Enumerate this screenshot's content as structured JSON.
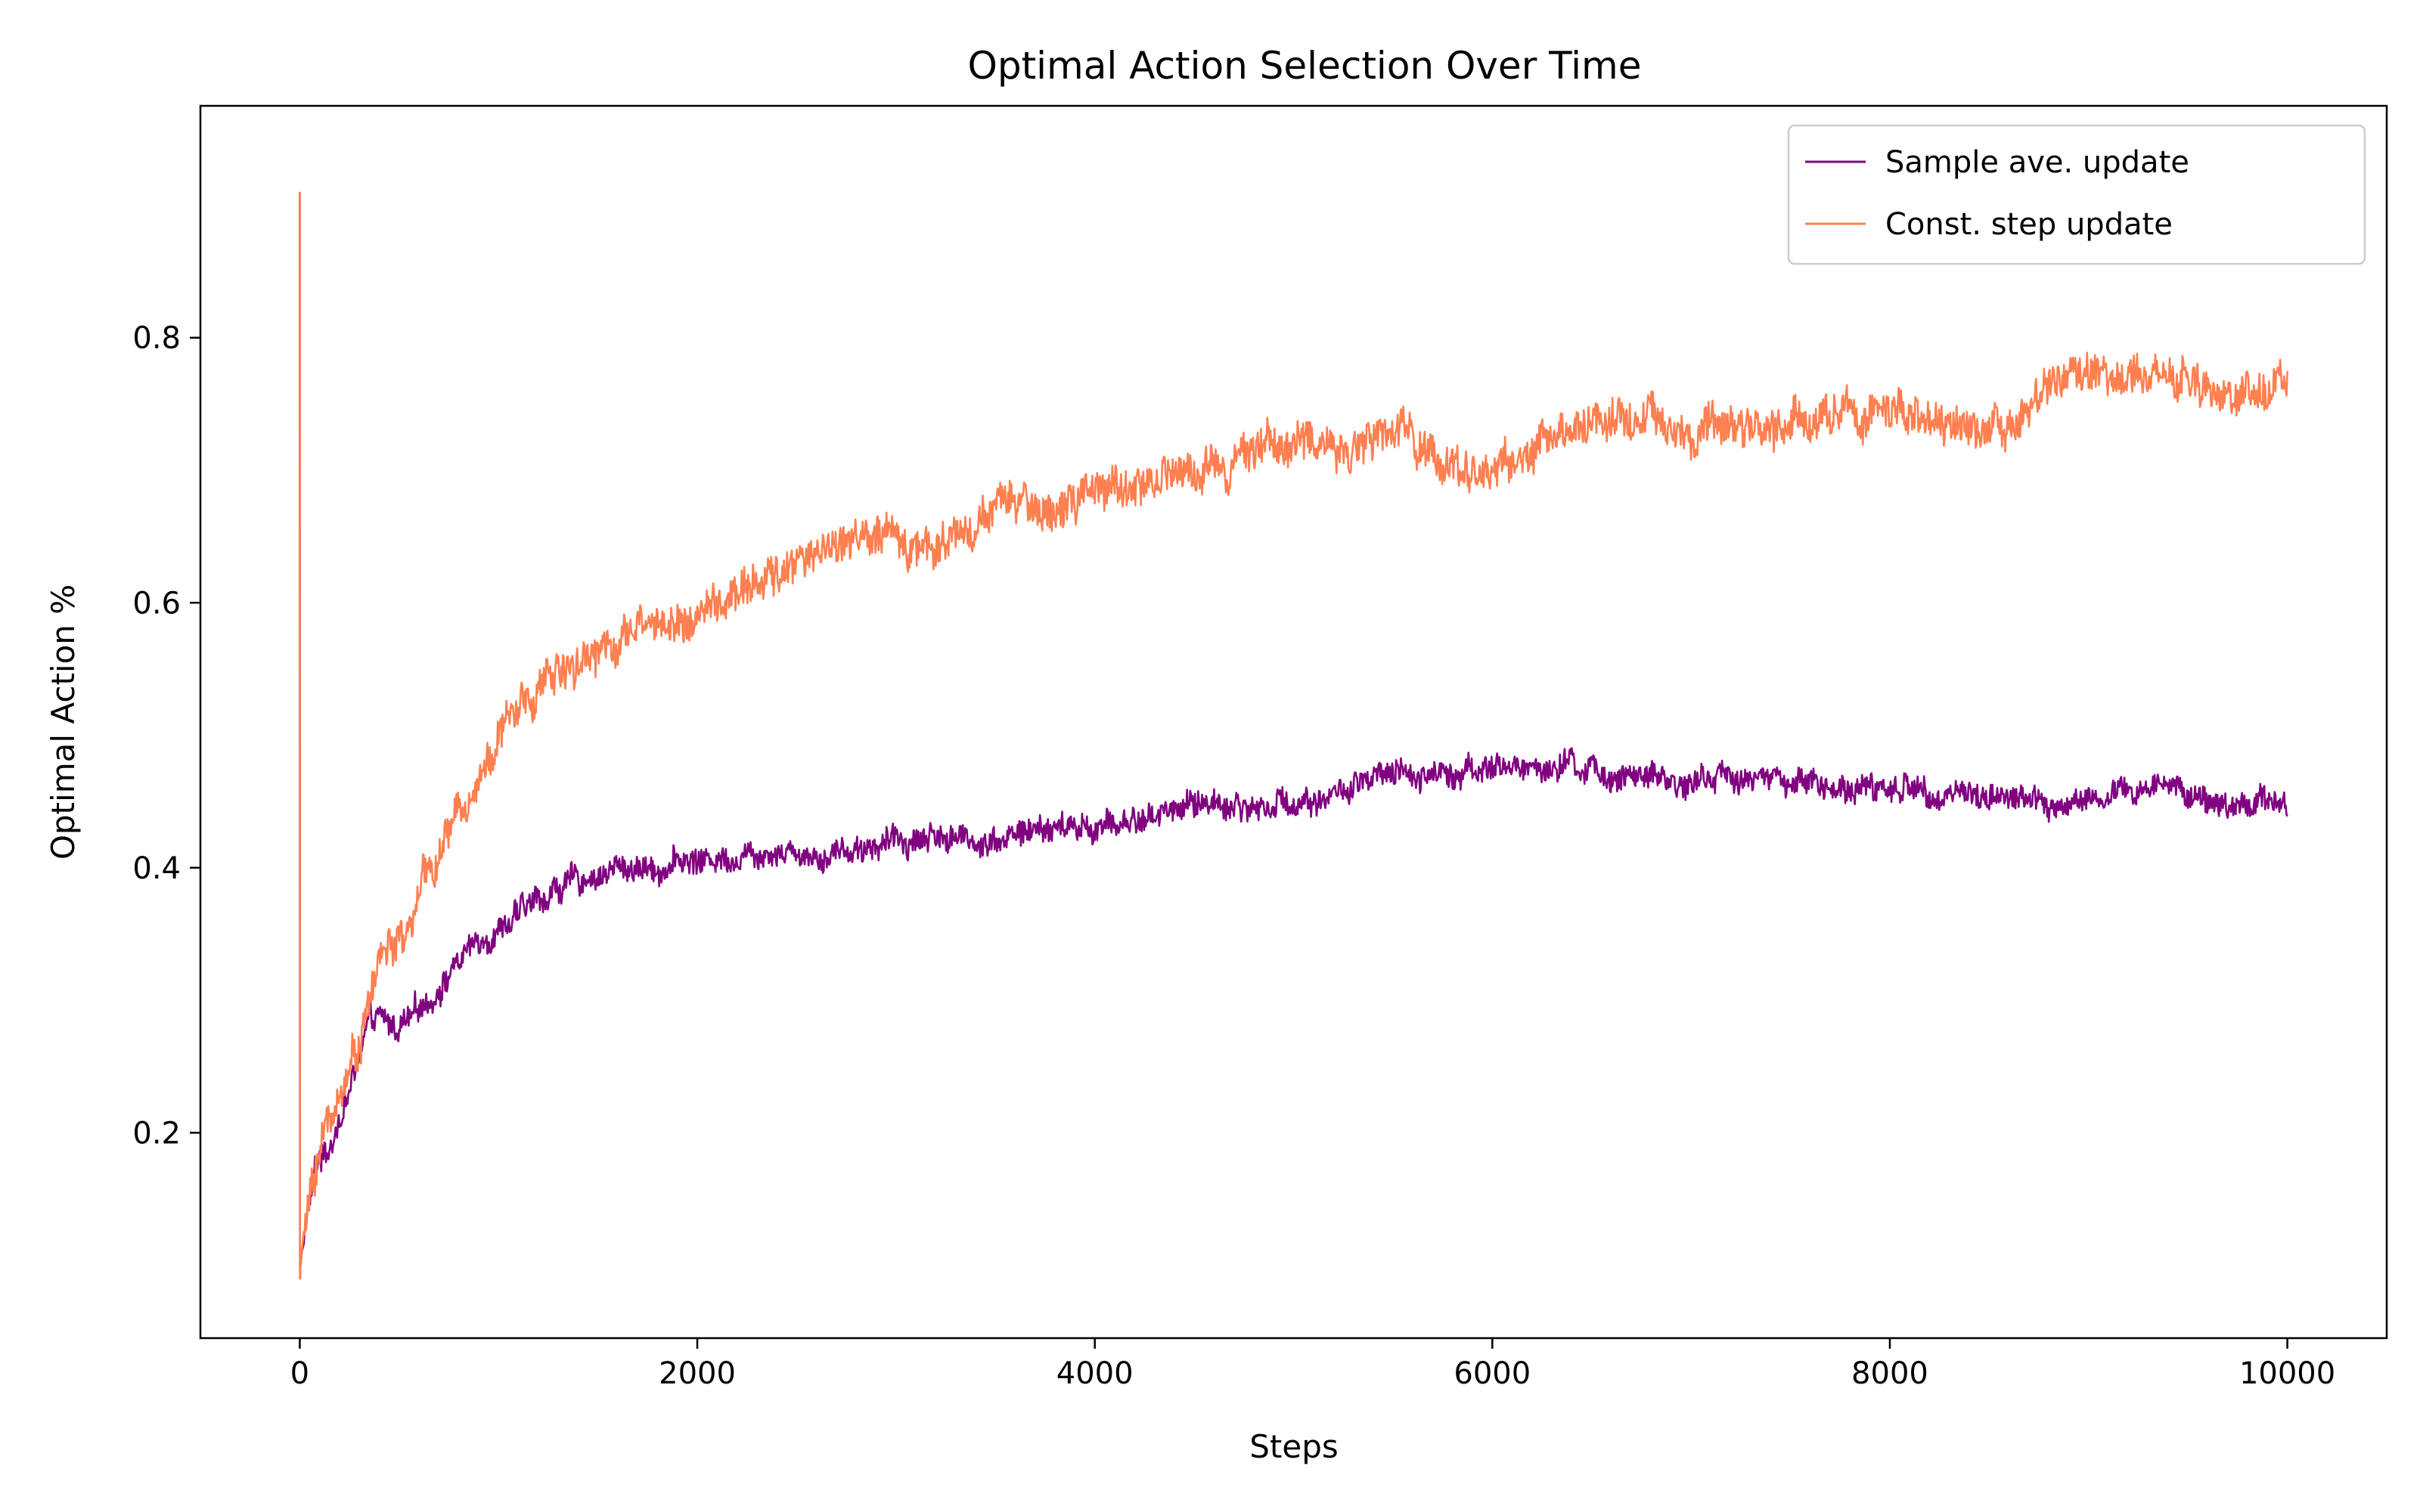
{
  "chart_data": {
    "type": "line",
    "title": "Optimal Action Selection Over Time",
    "xlabel": "Steps",
    "ylabel": "Optimal Action %",
    "xlim": [
      -500,
      10500
    ],
    "ylim": [
      0.045,
      0.975
    ],
    "x_ticks": [
      0,
      2000,
      4000,
      6000,
      8000,
      10000
    ],
    "x_tick_labels": [
      "0",
      "2000",
      "4000",
      "6000",
      "8000",
      "10000"
    ],
    "y_ticks": [
      0.2,
      0.4,
      0.6,
      0.8
    ],
    "y_tick_labels": [
      "0.2",
      "0.4",
      "0.6",
      "0.8"
    ],
    "grid": false,
    "legend_position": "top-right",
    "x": [
      0,
      1,
      2,
      3,
      5,
      10,
      20,
      30,
      50,
      75,
      100,
      150,
      200,
      250,
      300,
      350,
      400,
      450,
      500,
      550,
      600,
      700,
      800,
      900,
      1000,
      1100,
      1200,
      1300,
      1400,
      1500,
      1600,
      1700,
      1800,
      1900,
      2000,
      2200,
      2400,
      2600,
      2800,
      3000,
      3200,
      3400,
      3600,
      3800,
      4000,
      4200,
      4400,
      4600,
      4800,
      5000,
      5200,
      5400,
      5600,
      5800,
      6000,
      6200,
      6400,
      6600,
      6800,
      7000,
      7200,
      7400,
      7600,
      7800,
      8000,
      8200,
      8400,
      8600,
      8800,
      9000,
      9200,
      9400,
      9600,
      9800,
      10000
    ],
    "series": [
      {
        "name": "Sample ave. update",
        "color": "#800080",
        "noise": 0.008,
        "values": [
          0.91,
          0.09,
          0.09,
          0.1,
          0.1,
          0.11,
          0.12,
          0.13,
          0.15,
          0.17,
          0.18,
          0.19,
          0.21,
          0.23,
          0.26,
          0.28,
          0.285,
          0.28,
          0.28,
          0.285,
          0.29,
          0.31,
          0.33,
          0.345,
          0.355,
          0.365,
          0.375,
          0.385,
          0.39,
          0.395,
          0.4,
          0.4,
          0.4,
          0.405,
          0.405,
          0.41,
          0.415,
          0.41,
          0.415,
          0.42,
          0.425,
          0.42,
          0.425,
          0.43,
          0.43,
          0.435,
          0.445,
          0.45,
          0.445,
          0.45,
          0.455,
          0.465,
          0.47,
          0.475,
          0.475,
          0.475,
          0.475,
          0.47,
          0.465,
          0.465,
          0.47,
          0.465,
          0.465,
          0.46,
          0.46,
          0.46,
          0.455,
          0.455,
          0.445,
          0.45,
          0.455,
          0.465,
          0.45,
          0.45,
          0.45
        ]
      },
      {
        "name": "Const. step update",
        "color": "#FF7F50",
        "noise": 0.012,
        "values": [
          0.91,
          0.09,
          0.09,
          0.1,
          0.1,
          0.11,
          0.12,
          0.13,
          0.15,
          0.17,
          0.19,
          0.21,
          0.23,
          0.25,
          0.27,
          0.3,
          0.33,
          0.345,
          0.34,
          0.35,
          0.38,
          0.41,
          0.44,
          0.47,
          0.5,
          0.52,
          0.535,
          0.55,
          0.56,
          0.565,
          0.575,
          0.58,
          0.585,
          0.585,
          0.59,
          0.605,
          0.62,
          0.64,
          0.65,
          0.645,
          0.645,
          0.66,
          0.675,
          0.67,
          0.68,
          0.69,
          0.695,
          0.705,
          0.72,
          0.72,
          0.72,
          0.72,
          0.73,
          0.7,
          0.7,
          0.715,
          0.73,
          0.745,
          0.74,
          0.72,
          0.735,
          0.73,
          0.74,
          0.745,
          0.745,
          0.73,
          0.73,
          0.74,
          0.76,
          0.77,
          0.765,
          0.78,
          0.755,
          0.765,
          0.76
        ]
      }
    ]
  }
}
